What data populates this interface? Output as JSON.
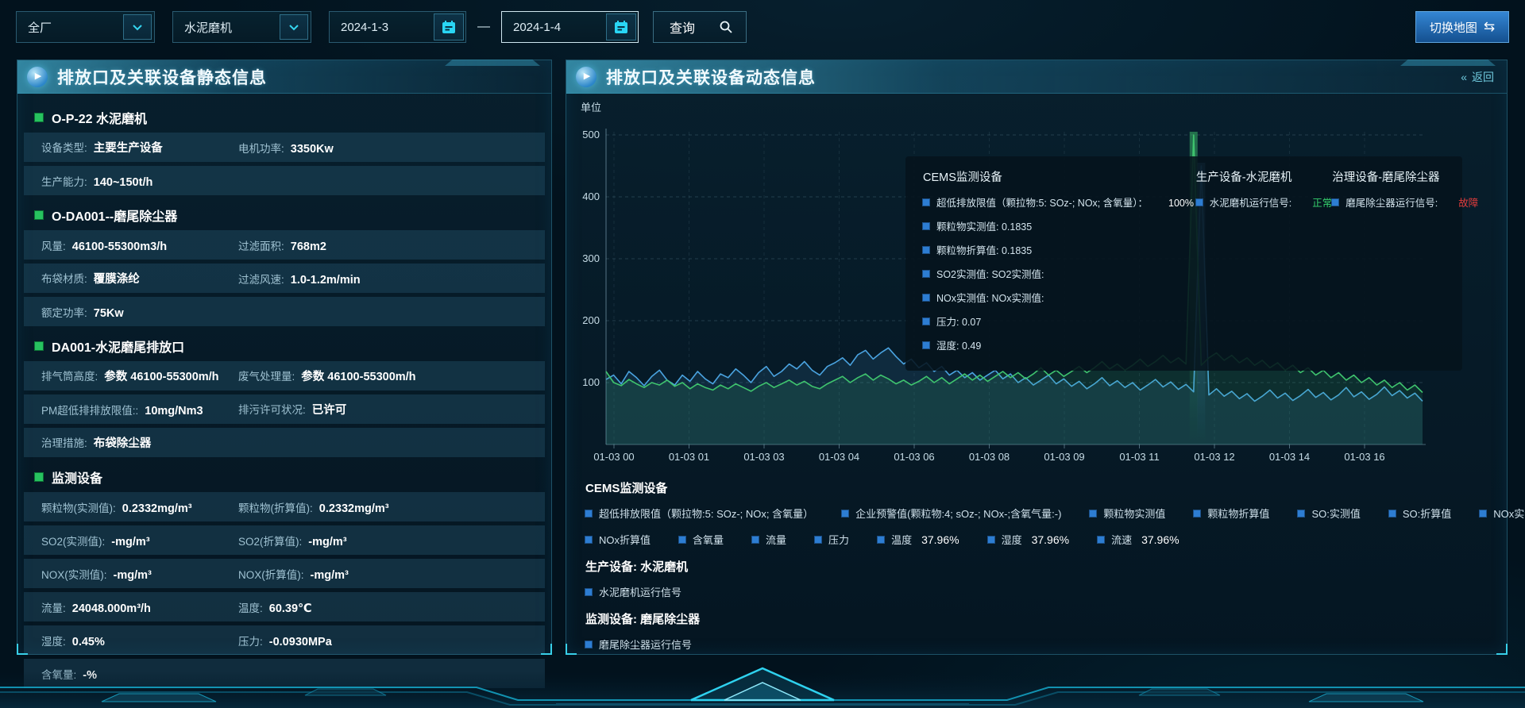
{
  "top_bar": {
    "plant_select": {
      "value": "全厂"
    },
    "device_select": {
      "value": "水泥磨机"
    },
    "date_from": "2024-1-3",
    "date_separator": "—",
    "date_to": "2024-1-4",
    "query_label": "查询",
    "switch_map_label": "切换地图",
    "switch_map_icon": "⇆"
  },
  "left_panel": {
    "title": "排放口及关联设备静态信息",
    "sections": [
      {
        "header": "O-P-22 水泥磨机",
        "rows": [
          [
            {
              "label": "设备类型:",
              "value": "主要生产设备"
            },
            {
              "label": "电机功率:",
              "value": "3350Kw"
            }
          ],
          [
            {
              "label": "生产能力:",
              "value": "140~150t/h"
            }
          ]
        ]
      },
      {
        "header": "O-DA001--磨尾除尘器",
        "rows": [
          [
            {
              "label": "风量:",
              "value": "46100-55300m3/h"
            },
            {
              "label": "过滤面积:",
              "value": "768m2"
            }
          ],
          [
            {
              "label": "布袋材质:",
              "value": "覆膜涤纶"
            },
            {
              "label": "过滤风速:",
              "value": "1.0-1.2m/min"
            }
          ],
          [
            {
              "label": "额定功率:",
              "value": "75Kw"
            }
          ]
        ]
      },
      {
        "header": "DA001-水泥磨尾排放口",
        "rows": [
          [
            {
              "label": "排气筒高度:",
              "value": "参数 46100-55300m/h"
            },
            {
              "label": "废气处理量:",
              "value": "参数 46100-55300m/h"
            }
          ],
          [
            {
              "label": "PM超低排排放限值::",
              "value": "10mg/Nm3"
            },
            {
              "label": "排污许可状况:",
              "value": "已许可"
            }
          ],
          [
            {
              "label": "治理措施:",
              "value": "布袋除尘器"
            }
          ]
        ]
      },
      {
        "header": "监测设备",
        "rows": [
          [
            {
              "label": "颗粒物(实测值):",
              "value": "0.2332mg/m³"
            },
            {
              "label": "颗粒物(折算值):",
              "value": "0.2332mg/m³"
            }
          ],
          [
            {
              "label": "SO2(实测值):",
              "value": "-mg/m³"
            },
            {
              "label": "SO2(折算值):",
              "value": "-mg/m³"
            }
          ],
          [
            {
              "label": "NOX(实测值):",
              "value": "-mg/m³"
            },
            {
              "label": "NOX(折算值):",
              "value": "-mg/m³"
            }
          ],
          [
            {
              "label": "流量:",
              "value": "24048.000m³/h"
            },
            {
              "label": "温度:",
              "value": "60.39℃"
            }
          ],
          [
            {
              "label": "湿度:",
              "value": "0.45%"
            },
            {
              "label": "压力:",
              "value": "-0.0930MPa"
            }
          ],
          [
            {
              "label": "含氧量:",
              "value": "-%"
            }
          ]
        ]
      }
    ]
  },
  "right_panel": {
    "title": "排放口及关联设备动态信息",
    "back_arrows": "«",
    "back_label": "返回",
    "tooltip": {
      "columns": [
        {
          "title": "CEMS监测设备",
          "items": [
            {
              "text": "超低排放限值（颗拉物:5: SOz-; NOx; 含氧量）：",
              "value": "100%"
            },
            {
              "text": "颗粒物实测值: 0.1835"
            },
            {
              "text": "颗粒物折算值: 0.1835"
            },
            {
              "text": "SO2实测值: SO2实测值:"
            },
            {
              "text": "NOx实测值: NOx实测值:"
            },
            {
              "text": "压力: 0.07"
            },
            {
              "text": "湿度: 0.49"
            }
          ]
        },
        {
          "title": "生产设备-水泥磨机",
          "items": [
            {
              "text": "水泥磨机运行信号:",
              "value": "正常",
              "value_color": "#35d06d"
            }
          ]
        },
        {
          "title": "治理设备-磨尾除尘器",
          "items": [
            {
              "text": "磨尾除尘器运行信号:",
              "value": "故障",
              "value_color": "#e03c3c"
            }
          ]
        }
      ]
    },
    "legend_groups": [
      {
        "header": "CEMS监测设备",
        "rows": [
          [
            {
              "label": "超低排放限值（颗拉物:5: SOz-; NOx; 含氧量）"
            },
            {
              "label": "企业预警值(颗粒物:4; sOz-; NOx-;含氧气量:-)"
            },
            {
              "label": "颗粒物实测值"
            },
            {
              "label": "颗粒物折算值"
            },
            {
              "label": "SO:实测值"
            },
            {
              "label": "SO:折算值"
            },
            {
              "label": "NOx实测值"
            }
          ],
          [
            {
              "label": "NOx折算值"
            },
            {
              "label": "含氧量"
            },
            {
              "label": "流量"
            },
            {
              "label": "压力"
            },
            {
              "label": "温度",
              "value": "37.96%"
            },
            {
              "label": "湿度",
              "value": "37.96%"
            },
            {
              "label": "流速",
              "value": "37.96%"
            }
          ]
        ]
      },
      {
        "header": "生产设备: 水泥磨机",
        "rows": [
          [
            {
              "label": "水泥磨机运行信号"
            }
          ]
        ]
      },
      {
        "header": "监测设备: 磨尾除尘器",
        "rows": [
          [
            {
              "label": "磨尾除尘器运行信号"
            }
          ]
        ]
      }
    ]
  },
  "chart_data": {
    "type": "line",
    "ylabel": "单位",
    "ylim": [
      0,
      500
    ],
    "yticks": [
      100,
      200,
      300,
      400,
      500
    ],
    "grid": true,
    "x_labels": [
      "01-03 00",
      "01-03 01",
      "01-03 03",
      "01-03 04",
      "01-03 06",
      "01-03 08",
      "01-03 09",
      "01-03 11",
      "01-03 12",
      "01-03 14",
      "01-03 16"
    ],
    "series": [
      {
        "name": "颗粒物实测值",
        "color": "#4aa3e0",
        "values": [
          105,
          112,
          98,
          118,
          108,
          95,
          110,
          120,
          104,
          96,
          112,
          102,
          118,
          106,
          98,
          114,
          108,
          122,
          112,
          100,
          116,
          126,
          110,
          118,
          130,
          122,
          134,
          120,
          112,
          126,
          132,
          140,
          128,
          145,
          152,
          138,
          148,
          156,
          142,
          130,
          138,
          124,
          132,
          118,
          126,
          112,
          120,
          108,
          116,
          104,
          112,
          120,
          106,
          114,
          100,
          108,
          96,
          104,
          112,
          98,
          106,
          94,
          102,
          90,
          98,
          108,
          95,
          103,
          92,
          100,
          88,
          96,
          105,
          93,
          101,
          89,
          97,
          85,
          450,
          80,
          90,
          78,
          86,
          74,
          82,
          70,
          78,
          88,
          75,
          83,
          71,
          79,
          89,
          76,
          84,
          72,
          80,
          92,
          77,
          85,
          73,
          81,
          93,
          79,
          87,
          75,
          83,
          70
        ]
      },
      {
        "name": "颗粒物折算值",
        "color": "#3fc46e",
        "values": [
          118,
          100,
          95,
          105,
          98,
          92,
          100,
          96,
          104,
          94,
          100,
          90,
          98,
          92,
          88,
          96,
          90,
          98,
          92,
          86,
          94,
          100,
          92,
          98,
          104,
          96,
          102,
          94,
          90,
          98,
          104,
          110,
          100,
          108,
          114,
          104,
          112,
          106,
          98,
          104,
          96,
          102,
          110,
          100,
          108,
          98,
          106,
          114,
          104,
          112,
          102,
          110,
          118,
          108,
          116,
          106,
          114,
          124,
          112,
          120,
          110,
          118,
          126,
          116,
          124,
          134,
          122,
          130,
          120,
          128,
          138,
          126,
          134,
          144,
          132,
          140,
          130,
          500,
          128,
          140,
          148,
          136,
          144,
          132,
          140,
          128,
          136,
          124,
          132,
          120,
          128,
          116,
          124,
          112,
          120,
          108,
          116,
          104,
          112,
          100,
          108,
          96,
          104,
          92,
          100,
          88,
          96,
          84
        ]
      }
    ]
  }
}
